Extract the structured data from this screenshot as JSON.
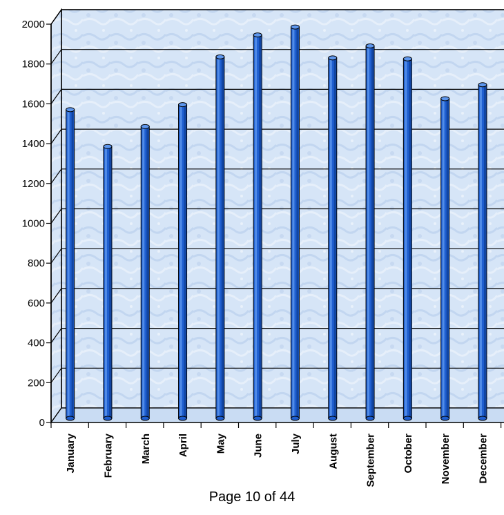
{
  "chart_data": {
    "type": "bar",
    "title": "",
    "xlabel": "",
    "ylabel": "",
    "categories": [
      "January",
      "February",
      "March",
      "April",
      "May",
      "June",
      "July",
      "August",
      "September",
      "October",
      "November",
      "December"
    ],
    "values": [
      1550,
      1365,
      1465,
      1575,
      1815,
      1925,
      1965,
      1810,
      1870,
      1805,
      1605,
      1675
    ],
    "ylim": [
      0,
      2000
    ],
    "yticks": [
      0,
      200,
      400,
      600,
      800,
      1000,
      1200,
      1400,
      1600,
      1800,
      2000
    ],
    "grid": true,
    "legend": "none",
    "colors": {
      "bar": "#1f5fd0",
      "bar_dark": "#0b3a8f",
      "bar_light": "#5e97ee",
      "wall": "#d7e6f7"
    }
  },
  "footer": {
    "page_text": "Page 10 of 44"
  }
}
